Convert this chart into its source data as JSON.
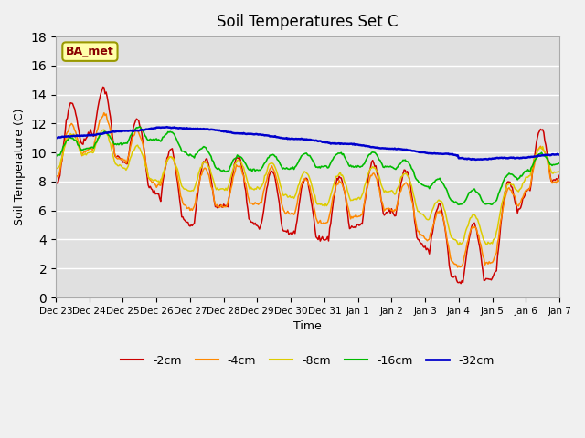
{
  "title": "Soil Temperatures Set C",
  "xlabel": "Time",
  "ylabel": "Soil Temperature (C)",
  "ylim": [
    0,
    18
  ],
  "yticks": [
    0,
    2,
    4,
    6,
    8,
    10,
    12,
    14,
    16,
    18
  ],
  "annotation_text": "BA_met",
  "line_colors": {
    "-2cm": "#cc0000",
    "-4cm": "#ff8800",
    "-8cm": "#ddcc00",
    "-16cm": "#00bb00",
    "-32cm": "#0000cc"
  },
  "legend_labels": [
    "-2cm",
    "-4cm",
    "-8cm",
    "-16cm",
    "-32cm"
  ],
  "x_tick_labels": [
    "Dec 23",
    "Dec 24",
    "Dec 25",
    "Dec 26",
    "Dec 27",
    "Dec 28",
    "Dec 29",
    "Dec 30",
    "Dec 31",
    "Jan 1",
    "Jan 2",
    "Jan 3",
    "Jan 4",
    "Jan 5",
    "Jan 6",
    "Jan 7"
  ],
  "num_points": 481
}
